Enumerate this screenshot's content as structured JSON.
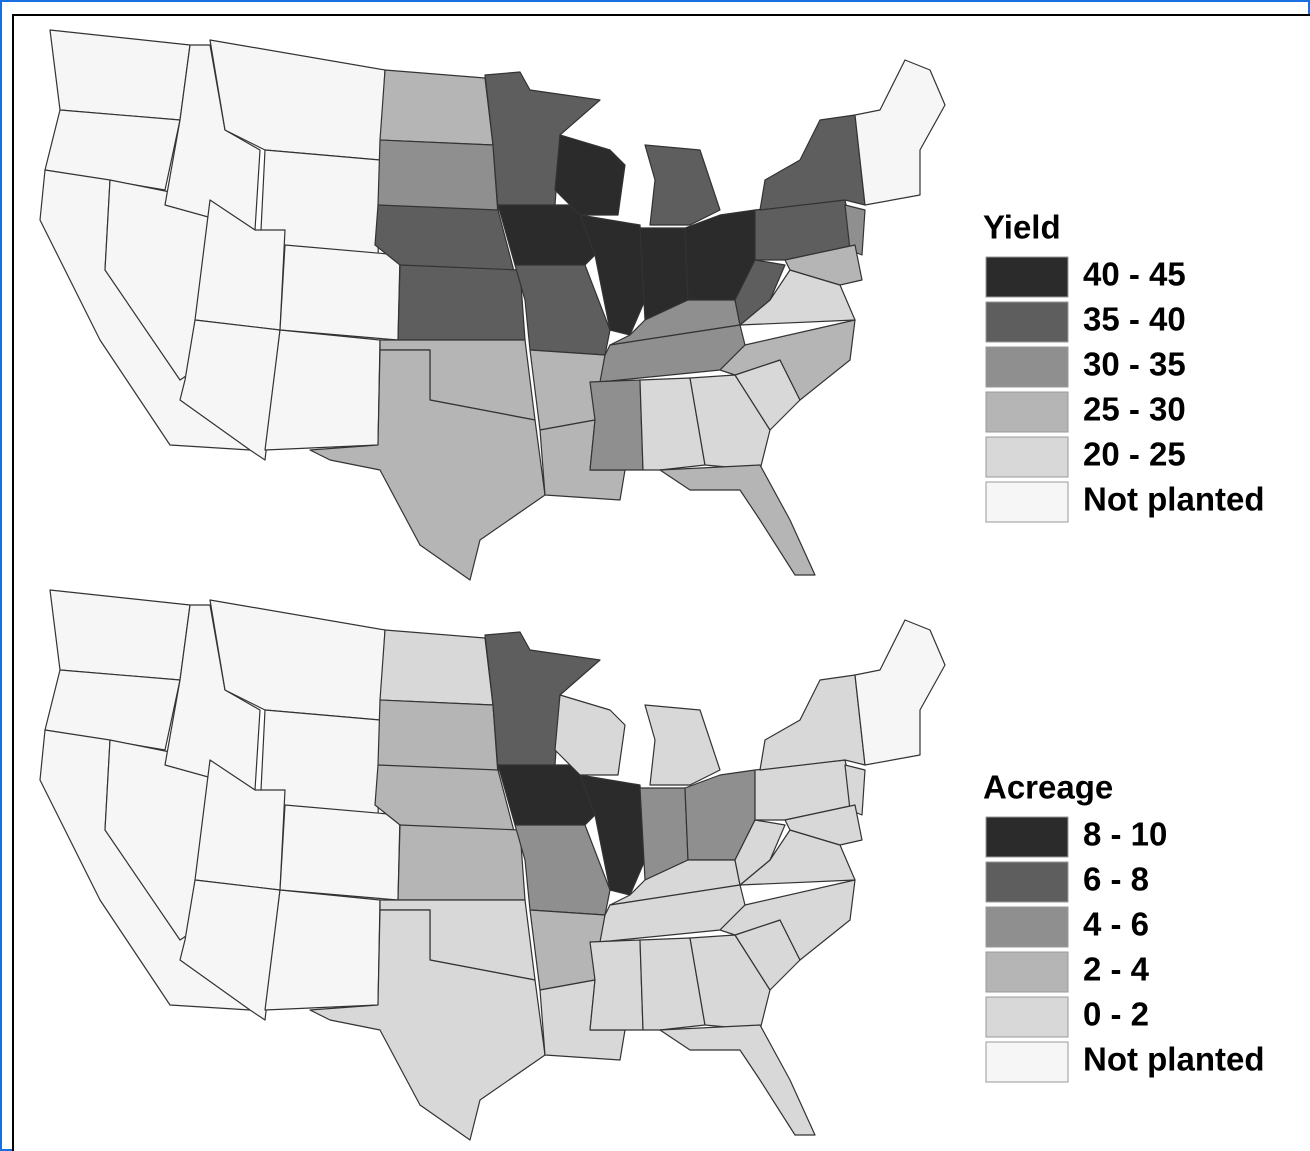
{
  "maps": [
    {
      "legend": {
        "title": "Yield",
        "items": [
          {
            "label": "40 - 45",
            "color": "#2b2b2b"
          },
          {
            "label": "35 - 40",
            "color": "#5e5e5e"
          },
          {
            "label": "30 - 35",
            "color": "#8f8f8f"
          },
          {
            "label": "25 - 30",
            "color": "#b5b5b5"
          },
          {
            "label": "20 - 25",
            "color": "#d8d8d8"
          },
          {
            "label": "Not planted",
            "color": "#f6f6f6"
          }
        ]
      }
    },
    {
      "legend": {
        "title": "Acreage",
        "items": [
          {
            "label": "8 - 10",
            "color": "#2b2b2b"
          },
          {
            "label": "6 - 8",
            "color": "#5e5e5e"
          },
          {
            "label": "4 - 6",
            "color": "#8f8f8f"
          },
          {
            "label": "2 - 4",
            "color": "#b5b5b5"
          },
          {
            "label": "0 - 2",
            "color": "#d8d8d8"
          },
          {
            "label": "Not planted",
            "color": "#f6f6f6"
          }
        ]
      }
    }
  ]
}
